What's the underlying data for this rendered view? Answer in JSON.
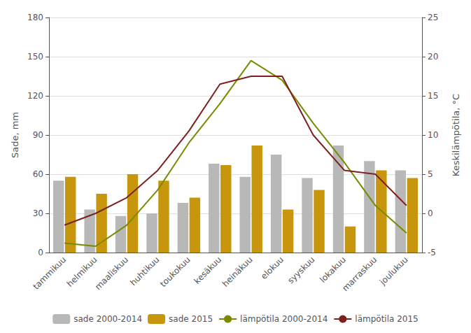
{
  "chart_data": {
    "type": "bar",
    "categories": [
      "tammikuu",
      "helmikuu",
      "maaliskuu",
      "huhtikuu",
      "toukokuu",
      "kesäkuu",
      "heinäkuu",
      "elokuu",
      "syyskuu",
      "lokakuu",
      "marraskuu",
      "joulukuu"
    ],
    "series": [
      {
        "name": "sade 2000-2014",
        "type": "bar",
        "color": "#b8b8b8",
        "values": [
          55,
          33,
          28,
          30,
          38,
          68,
          58,
          75,
          57,
          82,
          70,
          63
        ]
      },
      {
        "name": "sade 2015",
        "type": "bar",
        "color": "#c8960c",
        "values": [
          58,
          45,
          60,
          55,
          42,
          67,
          82,
          33,
          48,
          20,
          63,
          57
        ]
      },
      {
        "name": "lämpötila 2000-2014",
        "type": "line",
        "axis": "y2",
        "color": "#7a8a00",
        "values": [
          -3.8,
          -4.2,
          -1.5,
          3.0,
          9.0,
          14.0,
          19.5,
          17.0,
          11.5,
          6.5,
          1.0,
          -2.5
        ]
      },
      {
        "name": "lämpötila 2015",
        "type": "line",
        "axis": "y2",
        "color": "#7d2020",
        "values": [
          -1.5,
          0.0,
          2.0,
          5.5,
          10.5,
          16.5,
          17.5,
          17.5,
          10.0,
          5.5,
          5.0,
          1.0
        ]
      }
    ],
    "ylabel": "Sade, mm",
    "y2label": "Keskilämpötila, °C",
    "ylim": [
      0,
      180
    ],
    "yticks": [
      0,
      30,
      60,
      90,
      120,
      150,
      180
    ],
    "y2lim": [
      -5,
      25
    ],
    "y2ticks": [
      -5,
      0,
      5,
      10,
      15,
      20,
      25
    ],
    "grid": true,
    "legend": "bottom"
  }
}
